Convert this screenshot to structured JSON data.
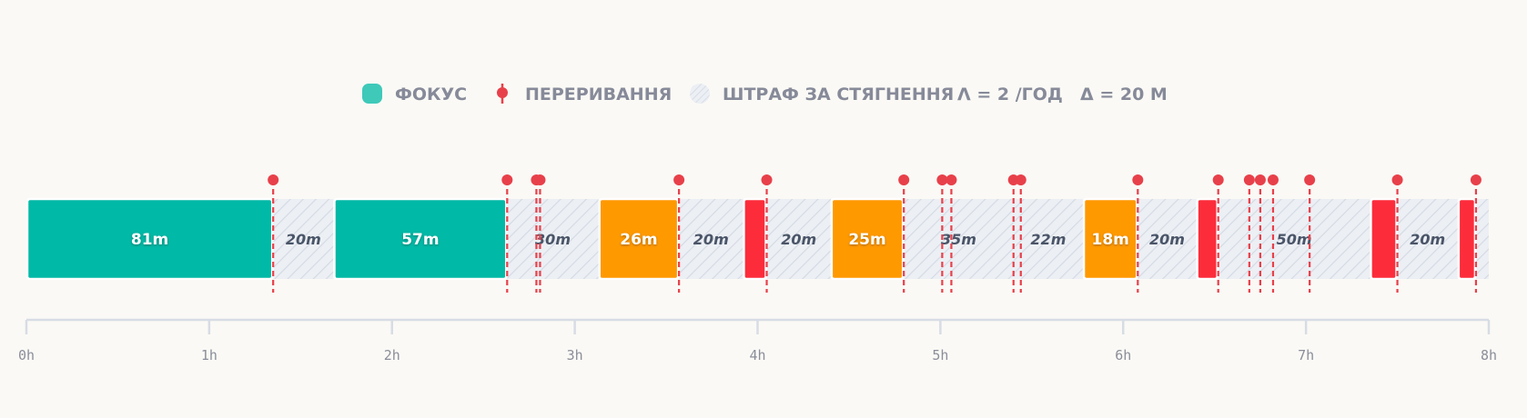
{
  "colors": {
    "focus": "#00b9a6",
    "partial": "#ff9900",
    "short": "#fc2c3b",
    "interrupt": "#e8404a",
    "legend_focus": "#3ec9b9",
    "penalty_fill": "#eceff4",
    "penalty_hatch": "#d3d9e3",
    "axis": "#d7dce5"
  },
  "legend": {
    "focus": "ФОКУС",
    "interrupt": "ПЕРЕРИВАННЯ",
    "penalty": "ШТРАФ ЗА СТЯГНЕННЯ",
    "lambda": "Λ = 2 /ГОД",
    "delta": "Δ = 20 М"
  },
  "chart_data": {
    "type": "timeline",
    "x_unit": "hours",
    "xlim": [
      0,
      8
    ],
    "ticks": [
      {
        "value": 0,
        "label": "0h"
      },
      {
        "value": 1,
        "label": "1h"
      },
      {
        "value": 2,
        "label": "2h"
      },
      {
        "value": 3,
        "label": "3h"
      },
      {
        "value": 4,
        "label": "4h"
      },
      {
        "value": 5,
        "label": "5h"
      },
      {
        "value": 6,
        "label": "6h"
      },
      {
        "value": 7,
        "label": "7h"
      },
      {
        "value": 8,
        "label": "8h"
      }
    ],
    "focus_blocks": [
      {
        "start": 0.0,
        "end": 1.35,
        "kind": "focus",
        "label": "81m"
      },
      {
        "start": 1.68,
        "end": 2.63,
        "kind": "focus",
        "label": "57m"
      },
      {
        "start": 3.13,
        "end": 3.57,
        "kind": "partial",
        "label": "26m"
      },
      {
        "start": 3.92,
        "end": 4.05,
        "kind": "short",
        "label": ""
      },
      {
        "start": 4.4,
        "end": 4.8,
        "kind": "partial",
        "label": "25m"
      },
      {
        "start": 5.78,
        "end": 6.08,
        "kind": "partial",
        "label": "18m"
      },
      {
        "start": 6.4,
        "end": 6.52,
        "kind": "short",
        "label": ""
      },
      {
        "start": 7.35,
        "end": 7.5,
        "kind": "short",
        "label": ""
      },
      {
        "start": 7.83,
        "end": 7.93,
        "kind": "short",
        "label": ""
      }
    ],
    "penalty_gaps": [
      {
        "start": 1.35,
        "end": 1.68,
        "label": "20m"
      },
      {
        "start": 2.63,
        "end": 3.13,
        "label": "30m"
      },
      {
        "start": 3.57,
        "end": 3.92,
        "label": "20m"
      },
      {
        "start": 4.05,
        "end": 4.4,
        "label": "20m"
      },
      {
        "start": 4.8,
        "end": 5.4,
        "label": "35m"
      },
      {
        "start": 5.4,
        "end": 5.78,
        "label": "22m"
      },
      {
        "start": 6.08,
        "end": 6.4,
        "label": "20m"
      },
      {
        "start": 6.52,
        "end": 7.35,
        "label": "50m"
      },
      {
        "start": 7.5,
        "end": 7.83,
        "label": "20m"
      },
      {
        "start": 7.93,
        "end": 8.0,
        "label": ""
      }
    ],
    "interruptions": [
      1.35,
      2.63,
      2.79,
      2.81,
      3.57,
      4.05,
      4.8,
      5.01,
      5.06,
      5.4,
      5.44,
      6.08,
      6.52,
      6.69,
      6.75,
      6.82,
      7.02,
      7.5,
      7.93
    ]
  }
}
